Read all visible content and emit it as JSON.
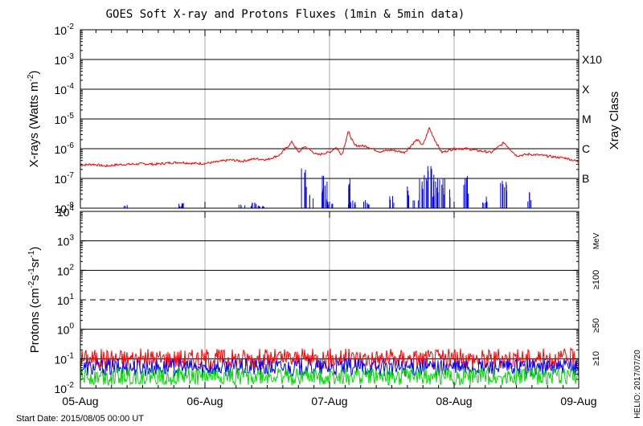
{
  "chart_data": [
    {
      "type": "line",
      "title": "GOES Soft X-ray and Protons Fluxes   (1min & 5min data)",
      "ylabel": "X-rays (Watts m-2)",
      "ylabel_parts": {
        "text": "X-rays (Watts m",
        "exp": "-2",
        "close": ")"
      },
      "y_scale": "log",
      "ylim": [
        1e-08,
        0.01
      ],
      "y_ticks": [
        {
          "value": 1e-08,
          "exp": "-8"
        },
        {
          "value": 1e-07,
          "exp": "-7"
        },
        {
          "value": 1e-06,
          "exp": "-6"
        },
        {
          "value": 1e-05,
          "exp": "-5"
        },
        {
          "value": 0.0001,
          "exp": "-4"
        },
        {
          "value": 0.001,
          "exp": "-3"
        },
        {
          "value": 0.01,
          "exp": "-2"
        }
      ],
      "right_axis_label": "Xray Class",
      "flare_classes": [
        {
          "label": "B",
          "value": 1e-07
        },
        {
          "label": "C",
          "value": 1e-06
        },
        {
          "label": "M",
          "value": 1e-05
        },
        {
          "label": "X",
          "value": 0.0001
        },
        {
          "label": "X10",
          "value": 0.001
        }
      ],
      "series": [
        {
          "color": "#ff0000",
          "x": [
            0,
            0.1,
            0.2,
            0.3,
            0.4,
            0.5,
            0.6,
            0.7,
            0.8,
            0.9,
            1.0,
            1.1,
            1.2,
            1.3,
            1.4,
            1.5,
            1.6,
            1.7,
            1.75,
            1.8,
            1.9,
            2.0,
            2.05,
            2.1,
            2.15,
            2.2,
            2.3,
            2.4,
            2.5,
            2.6,
            2.7,
            2.75,
            2.8,
            2.85,
            2.9,
            3.0,
            3.1,
            3.2,
            3.3,
            3.4,
            3.5,
            3.6,
            3.7,
            3.8,
            3.9,
            4.0
          ],
          "values": [
            2.8e-07,
            3e-07,
            2.6e-07,
            2.9e-07,
            3e-07,
            3.1e-07,
            3e-07,
            3.3e-07,
            3.5e-07,
            3.2e-07,
            3.2e-07,
            3.6e-07,
            4.2e-07,
            3.8e-07,
            4.6e-07,
            4.3e-07,
            6.2e-07,
            1.7e-06,
            7.5e-07,
            1.2e-06,
            6.2e-07,
            7.6e-07,
            1.1e-06,
            6.2e-07,
            3.8e-06,
            1.3e-06,
            1.2e-06,
            8e-07,
            9e-07,
            7.5e-07,
            2e-06,
            1.3e-06,
            5e-06,
            1.8e-06,
            7.5e-07,
            1e-06,
            1e-06,
            8.5e-07,
            7.5e-07,
            1.6e-06,
            5.8e-07,
            6.5e-07,
            6e-07,
            5.3e-07,
            4.8e-07,
            3.6e-07
          ]
        },
        {
          "color": "#0000ff",
          "x": [
            0.35,
            0.8,
            1.3,
            1.4,
            1.45,
            1.8,
            1.85,
            1.95,
            2.0,
            2.15,
            2.18,
            2.3,
            2.5,
            2.65,
            2.7,
            2.75,
            2.8,
            2.85,
            2.9,
            2.95,
            3.1,
            3.25,
            3.4,
            3.6
          ],
          "values": [
            1.3e-08,
            1.5e-08,
            1.4e-08,
            1.6e-08,
            1.2e-08,
            2.2e-07,
            5.2e-08,
            1.6e-07,
            2.2e-08,
            2.3e-07,
            2e-08,
            2e-08,
            3.2e-08,
            1.5e-07,
            5.6e-08,
            1.6e-07,
            6e-07,
            1.6e-07,
            1.2e-07,
            4.5e-08,
            1.3e-07,
            2.5e-08,
            1.6e-07,
            3.6e-08
          ]
        }
      ]
    },
    {
      "type": "line",
      "ylabel": "Protons (cm-2s-1sr-1)",
      "ylabel_parts": {
        "a": "Protons (cm",
        "e1": "-2",
        "b": "s",
        "e2": "-1",
        "c": "sr",
        "e3": "-1",
        "d": ")"
      },
      "y_scale": "log",
      "ylim": [
        0.01,
        10000
      ],
      "y_ticks": [
        {
          "value": 0.01,
          "label": "10",
          "exp": "-2"
        },
        {
          "value": 0.1,
          "label": "10",
          "exp": "-1"
        },
        {
          "value": 1,
          "label": "10",
          "exp": "0"
        },
        {
          "value": 10,
          "label": "10",
          "exp": "1"
        },
        {
          "value": 100,
          "label": "10",
          "exp": "2"
        },
        {
          "value": 1000,
          "label": "10",
          "exp": "3"
        },
        {
          "value": 10000,
          "label": "10",
          "exp": "4"
        }
      ],
      "threshold_dashed": 10,
      "unit_label": "MeV",
      "series": [
        {
          "name": "≥10",
          "color": "#ff0000",
          "level": 0.1
        },
        {
          "name": "≥50",
          "color": "#0000ff",
          "level": 0.05
        },
        {
          "name": "≥100",
          "color": "#00dd00",
          "level": 0.025
        }
      ]
    }
  ],
  "x_axis": {
    "categories": [
      "05-Aug",
      "06-Aug",
      "07-Aug",
      "08-Aug",
      "09-Aug"
    ],
    "xlim": [
      0,
      4
    ]
  },
  "footer": {
    "start_date": "Start Date: 2015/08/05 00:00 UT",
    "credit": "HELIO: 2017/07/20"
  }
}
